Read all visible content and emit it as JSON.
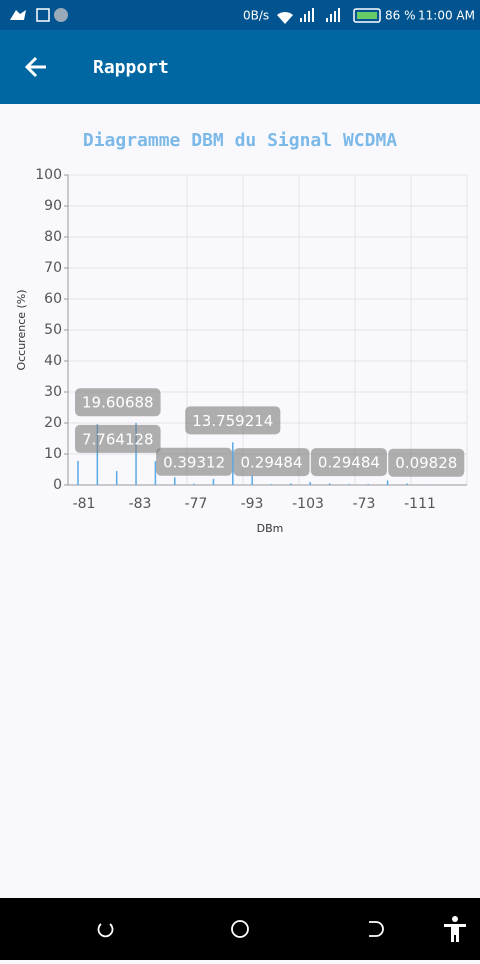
{
  "status_bar": {
    "speed": "0B/s",
    "battery": "86 %",
    "time": "11:00 AM"
  },
  "app_bar": {
    "title": "Rapport"
  },
  "chart_data": {
    "type": "bar",
    "title": "Diagramme DBM du Signal WCDMA",
    "x_label": "DBm",
    "y_label": "Occurence (%)",
    "x_tick_labels": [
      "-81",
      "-83",
      "-77",
      "-93",
      "-103",
      "-73",
      "-111"
    ],
    "categories": [
      null,
      null,
      null,
      null,
      null,
      null,
      null,
      null,
      null,
      null,
      null,
      null,
      null,
      null,
      null,
      null,
      null,
      null,
      null,
      null,
      null
    ],
    "values": [
      7.764128,
      19.60688,
      4.5,
      20,
      7.7,
      2.5,
      0.39312,
      2,
      13.759214,
      3,
      0.29484,
      0.5,
      1,
      0.5,
      0.29484,
      0.3,
      1.5,
      0.5,
      0.09828,
      0,
      0
    ],
    "value_labels": [
      "7.764128",
      "19.60688",
      null,
      null,
      null,
      null,
      "0.39312",
      null,
      "13.759214",
      null,
      "0.29484",
      null,
      null,
      null,
      "0.29484",
      null,
      null,
      null,
      "0.09828",
      null,
      null
    ],
    "color": "#5aa9e6",
    "ylim": [
      0,
      100
    ],
    "yticks": [
      0,
      10,
      20,
      30,
      40,
      50,
      60,
      70,
      80,
      90,
      100
    ],
    "grid": true
  }
}
